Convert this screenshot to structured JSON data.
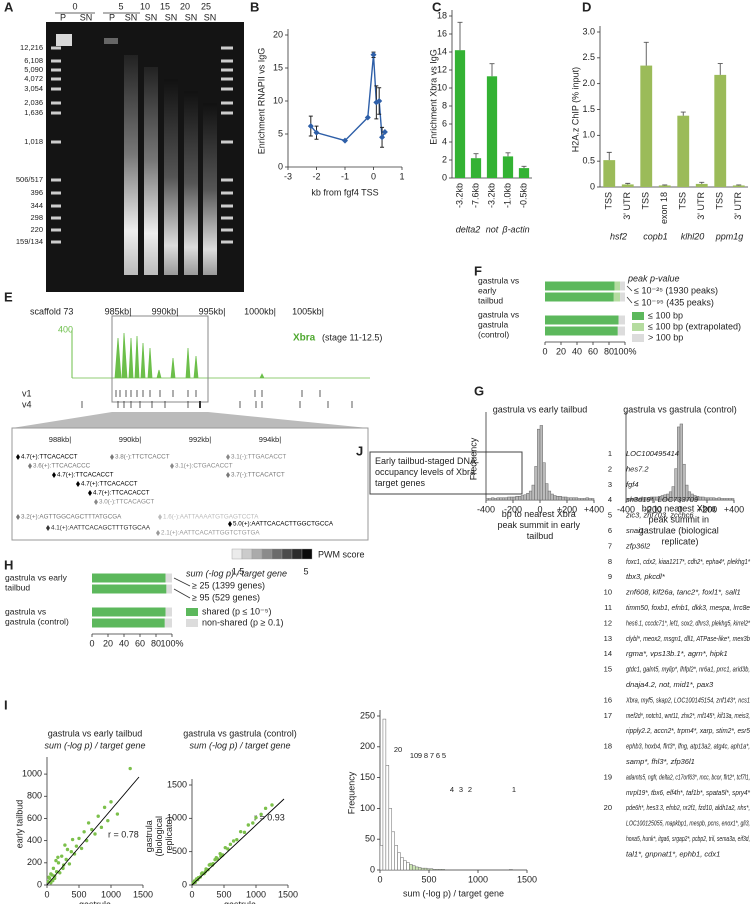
{
  "panel_labels": [
    "A",
    "B",
    "C",
    "D",
    "E",
    "F",
    "G",
    "H",
    "I",
    "J"
  ],
  "gel": {
    "time_labels": [
      "0",
      "5",
      "10",
      "15",
      "20",
      "25"
    ],
    "lane_labels": [
      "P",
      "SN",
      "P",
      "SN",
      "SN",
      "SN",
      "SN",
      "SN"
    ],
    "ladder": [
      "12,216",
      "6,108",
      "5,090",
      "4,072",
      "3,054",
      "2,036",
      "1,636",
      "1,018",
      "506/517",
      "396",
      "344",
      "298",
      "220",
      "159/134"
    ]
  },
  "track": {
    "scaffold": "scaffold 73",
    "kb_labels": [
      "985kb|",
      "990kb|",
      "995kb|",
      "1000kb|",
      "1005kb|"
    ],
    "scale_max": "400",
    "factor": "Xbra",
    "stage": "(stage 11-12.5)",
    "rows": [
      "v1",
      "v4"
    ],
    "zoom_kb_labels": [
      "988kb|",
      "990kb|",
      "992kb|",
      "994kb|"
    ],
    "motifs": [
      "4.7(+):TTCACACCT",
      "3.6(+):TTCACACCC",
      "4.7(+):TTCACACCT",
      "4.7(+):TTCACACCT",
      "4.7(+):TTCACACCT",
      "3.0(-):TTCACAGCT",
      "3.8(-):TTCTCACCT",
      "3.1(+):CTGACACCT",
      "3.1(-):TTGACACCT",
      "3.7(-):TTCACATCT",
      "3.2(+):AGTTGGCAGCTTTATGCGA",
      "4.1(+):AATTCACAGCTTTGTGCAA",
      "1.6(-):AATTAAAATGTGAGTCCTA",
      "5.0(+):AATTCACACTTGGCTGCCA",
      "2.1(+):AATTCACATTGGTCTGTGA"
    ],
    "legend_title": "PWM score",
    "legend_min": "1.5",
    "legend_max": "5"
  },
  "chart_data": [
    {
      "type": "line",
      "xlabel": "kb from fgf4 TSS",
      "ylabel": "Enrichment RNAPII vs IgG",
      "color": "#2e5fa8",
      "x": [
        -2.2,
        -2.0,
        -1.0,
        -0.2,
        0.0,
        0.1,
        0.2,
        0.3,
        0.4
      ],
      "values": [
        6.2,
        5.2,
        4.0,
        7.5,
        17.0,
        9.8,
        10.0,
        4.5,
        5.3
      ],
      "errors": [
        1.5,
        1.0,
        null,
        null,
        0.4,
        2.5,
        2.0,
        1.5,
        null
      ],
      "xlim": [
        -3,
        1
      ],
      "xticks": [
        -3,
        -2,
        -1,
        0,
        1
      ],
      "ylim": [
        0,
        20
      ],
      "yticks": [
        0,
        5,
        10,
        15,
        20
      ]
    },
    {
      "type": "bar",
      "ylabel": "Enrichment Xbra vs IgG",
      "color": "#33b233",
      "groups": [
        {
          "name": "delta2",
          "categories": [
            "-3.2kb",
            "-7.6kb"
          ],
          "values": [
            14.2,
            2.2
          ],
          "errors": [
            3.1,
            0.5
          ]
        },
        {
          "name": "not",
          "categories": [
            "-3.2kb"
          ],
          "values": [
            11.3
          ],
          "errors": [
            1.4
          ]
        },
        {
          "name": "β-actin",
          "categories": [
            "-1.0kb",
            "-0.5kb"
          ],
          "values": [
            2.4,
            1.1
          ],
          "errors": [
            0.4,
            0.2
          ]
        }
      ],
      "ylim": [
        0,
        18
      ],
      "yticks": [
        0,
        2,
        4,
        6,
        8,
        10,
        12,
        14,
        16,
        18
      ]
    },
    {
      "type": "bar",
      "ylabel": "H2A.z ChIP (% input)",
      "color": "#9bbb59",
      "groups": [
        {
          "name": "hsf2",
          "categories": [
            "TSS",
            "3' UTR"
          ],
          "values": [
            0.52,
            0.05
          ],
          "errors": [
            0.15,
            0.02
          ]
        },
        {
          "name": "copb1",
          "categories": [
            "TSS",
            "exon 18"
          ],
          "values": [
            2.35,
            0.03
          ],
          "errors": [
            0.45,
            0.01
          ]
        },
        {
          "name": "klhl20",
          "categories": [
            "TSS",
            "3' UTR"
          ],
          "values": [
            1.38,
            0.06
          ],
          "errors": [
            0.07,
            0.03
          ]
        },
        {
          "name": "ppm1g",
          "categories": [
            "TSS",
            "3' UTR"
          ],
          "values": [
            2.17,
            0.03
          ],
          "errors": [
            0.22,
            0.01
          ]
        }
      ],
      "ylim": [
        0,
        3
      ],
      "yticks": [
        0,
        0.5,
        {
          "value": 1,
          "label": "1.0"
        },
        1.5,
        {
          "value": 2,
          "label": "2.0"
        },
        2.5,
        {
          "value": 3,
          "label": "3.0"
        }
      ]
    },
    {
      "type": "hbar",
      "stacked": true,
      "categories": [
        "gastrula vs early tailbud",
        null,
        "gastrula vs gastrula (control)",
        null
      ],
      "series": [
        {
          "name": "≤ 100 bp",
          "color": "#5cb85c",
          "values": [
            87,
            86,
            92,
            91
          ]
        },
        {
          "name": "≤ 100 bp (extrapolated)",
          "color": "#b5dca0",
          "values": [
            7,
            8,
            0,
            0
          ]
        },
        {
          "name": "> 100 bp",
          "color": "#dcdcdc",
          "values": [
            6,
            6,
            8,
            9
          ]
        }
      ],
      "xlim": [
        0,
        100
      ],
      "xticks": [
        0,
        20,
        40,
        60,
        80,
        {
          "value": 100,
          "label": "100%"
        }
      ],
      "annotations": [
        "peak p-value",
        "≤ 10⁻²⁵ (1930 peaks)",
        "≤ 10⁻⁹⁵ (435 peaks)"
      ]
    },
    {
      "type": "histogram",
      "title": "gastrula vs early tailbud",
      "ylabel": "Frequency",
      "xlabel": "bp to nearest Xbra peak summit in early tailbud",
      "color": "#bbbbbb",
      "bins": [
        -400,
        -380,
        -360,
        -340,
        -320,
        -300,
        -280,
        -260,
        -240,
        -220,
        -200,
        -180,
        -160,
        -140,
        -120,
        -100,
        -80,
        -60,
        -40,
        -20,
        0,
        20,
        40,
        60,
        80,
        100,
        120,
        140,
        160,
        180,
        200,
        220,
        240,
        260,
        280,
        300,
        320,
        340,
        360,
        380,
        400
      ],
      "counts": [
        2,
        2,
        3,
        2,
        3,
        3,
        3,
        3,
        4,
        4,
        4,
        5,
        5,
        6,
        7,
        9,
        12,
        20,
        45,
        95,
        100,
        50,
        22,
        12,
        8,
        6,
        5,
        5,
        4,
        4,
        3,
        3,
        3,
        3,
        2,
        2,
        2,
        3,
        2,
        2
      ],
      "xlim": [
        -400,
        400
      ],
      "xticks": [
        -400,
        -200,
        0,
        {
          "value": 200,
          "label": "+200"
        },
        {
          "value": 400,
          "label": "+400"
        }
      ],
      "ylim": [
        0,
        110
      ]
    },
    {
      "type": "histogram",
      "title": "gastrula vs gastrula (control)",
      "xlabel": "bp to nearest Xbra peak summit in gastrulae (biological replicate)",
      "color": "#bbbbbb",
      "bins": [
        -400,
        -380,
        -360,
        -340,
        -320,
        -300,
        -280,
        -260,
        -240,
        -220,
        -200,
        -180,
        -160,
        -140,
        -120,
        -100,
        -80,
        -60,
        -40,
        -20,
        0,
        20,
        40,
        60,
        80,
        100,
        120,
        140,
        160,
        180,
        200,
        220,
        240,
        260,
        280,
        300,
        320,
        340,
        360,
        380,
        400
      ],
      "counts": [
        2,
        2,
        2,
        3,
        2,
        3,
        3,
        3,
        3,
        4,
        4,
        4,
        5,
        6,
        7,
        8,
        11,
        18,
        42,
        98,
        102,
        48,
        20,
        11,
        8,
        6,
        5,
        4,
        4,
        3,
        3,
        3,
        3,
        2,
        3,
        2,
        2,
        2,
        2,
        2
      ],
      "xlim": [
        -400,
        400
      ],
      "xticks": [
        -400,
        -200,
        0,
        {
          "value": 200,
          "label": "+200"
        },
        {
          "value": 400,
          "label": "+400"
        }
      ],
      "ylim": [
        0,
        110
      ]
    },
    {
      "type": "hbar",
      "stacked": true,
      "categories": [
        "gastrula vs early tailbud",
        null,
        "gastrula vs gastrula (control)",
        null
      ],
      "series": [
        {
          "name": "shared (p ≤ 10⁻⁵)",
          "color": "#5cb85c",
          "values": [
            92,
            93,
            92,
            91
          ]
        },
        {
          "name": "non-shared (p ≥ 0.1)",
          "color": "#dcdcdc",
          "values": [
            8,
            7,
            8,
            9
          ]
        }
      ],
      "xlim": [
        0,
        100
      ],
      "xticks": [
        0,
        20,
        40,
        60,
        80,
        {
          "value": 100,
          "label": "100%"
        }
      ],
      "annotations": [
        "sum (-log p) / target gene",
        "≥ 25 (1399 genes)",
        "≥ 95 (529 genes)"
      ]
    },
    {
      "type": "scatter",
      "title": "gastrula vs early tailbud",
      "subtitle": "sum (-log p) / target gene",
      "xlabel": "gastrula",
      "ylabel": "early tailbud",
      "color": "#7cc04b",
      "x": [
        20,
        40,
        60,
        80,
        100,
        120,
        150,
        180,
        200,
        230,
        260,
        300,
        320,
        350,
        380,
        400,
        430,
        460,
        500,
        540,
        580,
        620,
        650,
        700,
        750,
        800,
        850,
        900,
        950,
        1000,
        1100,
        1300,
        60,
        90,
        140,
        250,
        280,
        120,
        30,
        170
      ],
      "values": [
        30,
        60,
        20,
        90,
        150,
        60,
        120,
        200,
        110,
        260,
        180,
        230,
        320,
        190,
        300,
        410,
        280,
        350,
        420,
        330,
        480,
        400,
        560,
        500,
        460,
        620,
        520,
        700,
        580,
        750,
        640,
        1050,
        100,
        40,
        220,
        150,
        360,
        80,
        70,
        250
      ],
      "xlim": [
        0,
        1500
      ],
      "xticks": [
        0,
        500,
        1000,
        1500
      ],
      "ylim": [
        0,
        1100
      ],
      "yticks": [
        0,
        200,
        400,
        600,
        800,
        1000
      ],
      "annotations": [
        "r = 0.78"
      ]
    },
    {
      "type": "scatter",
      "title": "gastrula vs gastrula (control)",
      "subtitle": "sum (-log p) / target gene",
      "xlabel": "gastrula",
      "ylabel": "gastrula (biological replicate)",
      "color": "#7cc04b",
      "x": [
        20,
        50,
        70,
        100,
        130,
        160,
        190,
        220,
        250,
        290,
        320,
        360,
        400,
        440,
        480,
        520,
        560,
        600,
        650,
        700,
        760,
        820,
        880,
        950,
        1000,
        1080,
        1150,
        1250,
        40,
        90,
        150,
        210,
        270,
        330,
        380,
        450
      ],
      "values": [
        30,
        40,
        90,
        110,
        120,
        180,
        170,
        240,
        230,
        310,
        300,
        380,
        390,
        470,
        450,
        560,
        540,
        610,
        660,
        680,
        800,
        790,
        900,
        930,
        1010,
        1060,
        1150,
        1200,
        60,
        80,
        170,
        200,
        300,
        320,
        410,
        430
      ],
      "xlim": [
        0,
        1500
      ],
      "xticks": [
        0,
        500,
        1000,
        1500
      ],
      "ylim": [
        0,
        1500
      ],
      "yticks": [
        0,
        500,
        1000,
        1500
      ],
      "annotations": [
        "r = 0.93"
      ]
    },
    {
      "type": "histogram",
      "ylabel": "Frequency",
      "xlabel": "sum (-log p) / target gene",
      "color": "#ffffff",
      "box_text": "Early tailbud-staged DNA occupancy levels of Xbra target genes",
      "bins": [
        0,
        30,
        60,
        90,
        120,
        150,
        180,
        210,
        240,
        270,
        300,
        330,
        360,
        390,
        420,
        450,
        480,
        510,
        540,
        570,
        600,
        630,
        660,
        690,
        720,
        750,
        780,
        810,
        840,
        870,
        900,
        930,
        960,
        990,
        1020,
        1050,
        1080,
        1110,
        1140,
        1170,
        1200,
        1230,
        1260,
        1290,
        1320,
        1350,
        1380,
        1410,
        1440,
        1470,
        1500
      ],
      "counts": [
        40,
        245,
        170,
        100,
        62,
        40,
        28,
        20,
        15,
        12,
        9,
        7,
        5,
        4,
        3,
        3,
        2,
        2,
        1,
        1,
        1,
        1,
        0,
        0,
        0,
        0,
        0,
        0,
        0,
        0,
        0,
        0,
        0,
        0,
        0,
        0,
        0,
        0,
        0,
        0,
        0,
        0,
        0,
        0,
        1,
        0,
        0,
        0,
        0,
        0
      ],
      "xlim": [
        0,
        1500
      ],
      "xticks": [
        0,
        500,
        1000,
        1500
      ],
      "ylim": [
        0,
        250
      ],
      "yticks": [
        0,
        50,
        100,
        150,
        200,
        250
      ],
      "annotations": [
        "20",
        "10",
        "9",
        "8",
        "7",
        "6",
        "5",
        "4",
        "3",
        "2",
        "1"
      ]
    }
  ],
  "gene_list": [
    {
      "rank": "1",
      "lines": [
        "LOC100495414"
      ]
    },
    {
      "rank": "2",
      "lines": [
        "hes7.2"
      ]
    },
    {
      "rank": "3",
      "lines": [
        "fgf4"
      ]
    },
    {
      "rank": "4",
      "lines": [
        "sh3d19*, LOC733709"
      ]
    },
    {
      "rank": "5",
      "lines": [
        "zic3, znf703, zcchc6"
      ]
    },
    {
      "rank": "6",
      "lines": [
        "snai1"
      ]
    },
    {
      "rank": "7",
      "lines": [
        "zfp36l2"
      ]
    },
    {
      "rank": "8",
      "lines": [
        "foxc1, cdx2, kiaa1217*, cdh2*, epha4*, plekhg1*"
      ]
    },
    {
      "rank": "9",
      "lines": [
        "tbx3, pkcdl*"
      ]
    },
    {
      "rank": "10",
      "lines": [
        "znf608, kif26a, tanc2*, foxl1*, sall1"
      ]
    },
    {
      "rank": "11",
      "lines": [
        "timm50, foxb1, efnb1, dkk3, mespa, lrrc8e"
      ]
    },
    {
      "rank": "12",
      "lines": [
        "hes6.1, cccdc71*, lef1, sox2, dhrs3, plekhg5, kirrel2*"
      ]
    },
    {
      "rank": "13",
      "lines": [
        "clybl*, meox2, msgn1, dll1, ATPase-like*, mex3b"
      ]
    },
    {
      "rank": "14",
      "lines": [
        "rgma*, vps13b.1*, agrn*, hipk1"
      ]
    },
    {
      "rank": "15",
      "lines": [
        "gtdc1, galnt5, mylip*, lhfpl2*, nr6a1, prrc1, arid3b,",
        "dnaja4.2, not, mid1*, pax3"
      ]
    },
    {
      "rank": "16",
      "lines": [
        "Xbra, myf5, skap2, LOC100145154, znf143*, ncs1"
      ]
    },
    {
      "rank": "17",
      "lines": [
        "mef2d*, notch1, wnt11, zhx2*, rnf145*, kif13a, meis3,",
        "ripply2.2, accn2*, trpm4*, xarp, stim2*, esr5"
      ]
    },
    {
      "rank": "18",
      "lines": [
        "ephb3, hoxb4, flrt3*, lfng, atp13a2, atg4c, aph1a*,",
        "samp*, fhl3*, zfp36l1"
      ]
    },
    {
      "rank": "19",
      "lines": [
        "adamts5, ngfr, delta2, c17orf63*, mcc, bcor, flrt2*, tcf7l1,",
        "mrpl19*, tbx6, elf4h*, taf1b*, spata5l*, spry4*"
      ]
    },
    {
      "rank": "20",
      "lines": [
        "pde6h*, hes3.3, efnb2, nr2f1, fzd10, aldh1a2, nhs*,",
        "LOC100125055, mapkbp1, mespb, pcns, enox1*, gli3,",
        "hoxa5, hunk*, itga6, srgap2*, pcbp2, tril, sema3a, eif3d,",
        "tal1*, gnpnat1*, ephb1, cdx1"
      ]
    }
  ]
}
